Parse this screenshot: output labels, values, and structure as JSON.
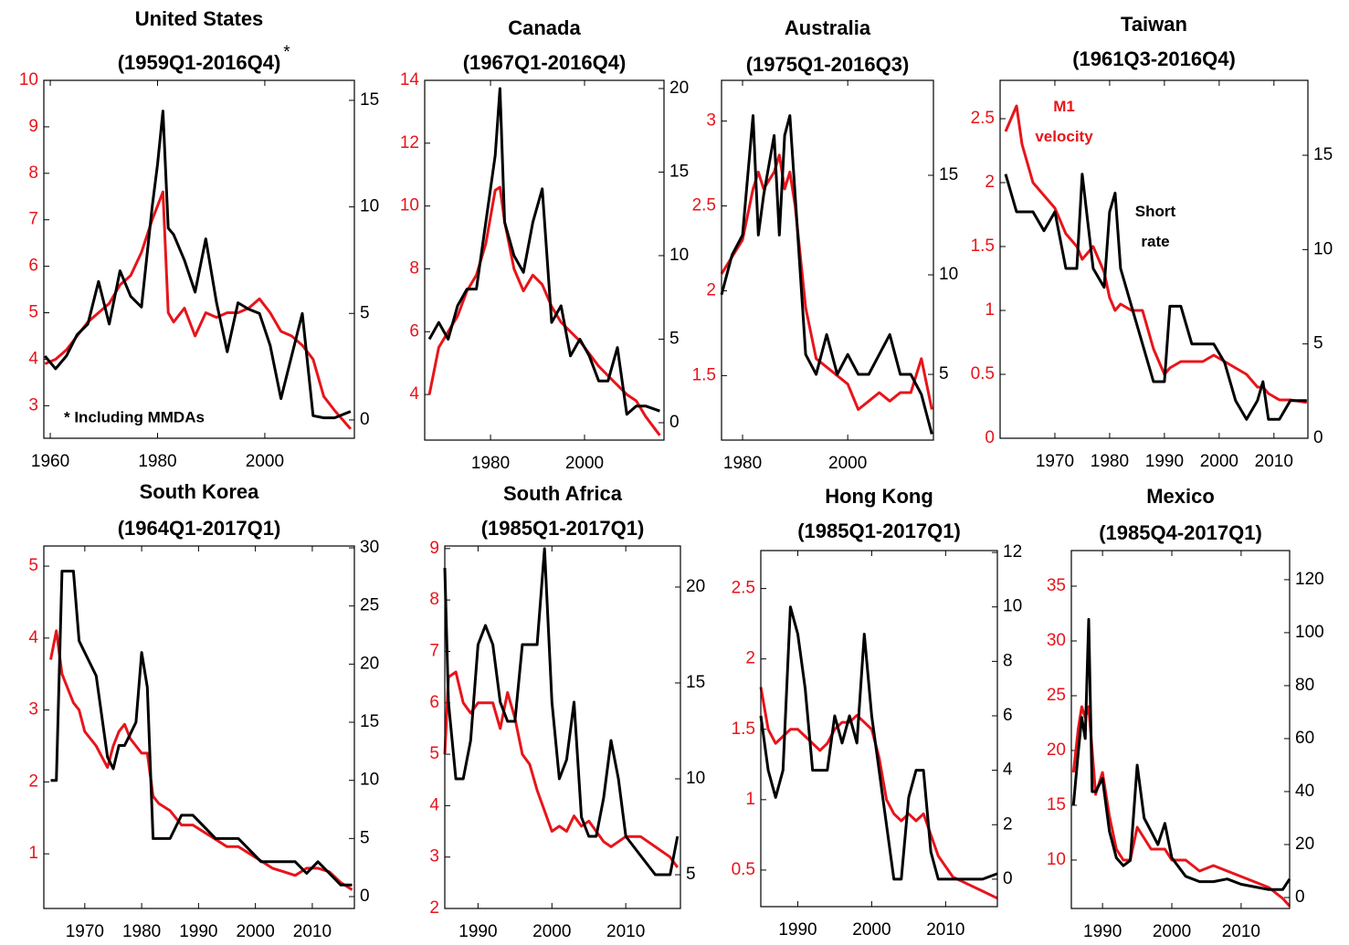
{
  "chart_data": [
    {
      "type": "line",
      "title": "United States",
      "subtitle": "(1959Q1-2016Q4)",
      "annotations": [
        "*",
        "* Including MMDAs"
      ],
      "x": [
        1959,
        1961,
        1963,
        1965,
        1967,
        1969,
        1971,
        1973,
        1975,
        1977,
        1979,
        1980,
        1981,
        1982,
        1983,
        1985,
        1987,
        1989,
        1991,
        1993,
        1995,
        1997,
        1999,
        2001,
        2003,
        2005,
        2007,
        2009,
        2011,
        2013,
        2016
      ],
      "xlim": [
        1958.8,
        2016.7
      ],
      "xticks": [
        1960,
        1980,
        2000
      ],
      "ylim": [
        2.3,
        10
      ],
      "yticks": [
        3,
        4,
        5,
        6,
        7,
        8,
        9,
        10
      ],
      "y2lim": [
        -0.86,
        15.94
      ],
      "y2ticks": [
        0,
        5,
        10,
        15
      ],
      "series": [
        {
          "color": "#e8141b",
          "values": [
            3.9,
            4.0,
            4.2,
            4.5,
            4.8,
            5.0,
            5.2,
            5.6,
            5.8,
            6.3,
            7.0,
            7.3,
            7.6,
            5.0,
            4.8,
            5.1,
            4.5,
            5.0,
            4.9,
            5.0,
            5.0,
            5.1,
            5.3,
            5.0,
            4.6,
            4.5,
            4.3,
            4.0,
            3.2,
            2.9,
            2.5
          ]
        },
        {
          "color": "#000000",
          "axis": "y2",
          "values": [
            3.0,
            2.4,
            3.0,
            4.0,
            4.5,
            6.5,
            4.5,
            7.0,
            5.8,
            5.3,
            10.0,
            12.0,
            14.5,
            9.0,
            8.7,
            7.5,
            6.0,
            8.5,
            5.5,
            3.2,
            5.5,
            5.2,
            5.0,
            3.5,
            1.0,
            3.0,
            5.0,
            0.2,
            0.1,
            0.1,
            0.4
          ]
        }
      ]
    },
    {
      "type": "line",
      "title": "Canada",
      "subtitle": "(1967Q1-2016Q4)",
      "x": [
        1967,
        1969,
        1971,
        1973,
        1975,
        1977,
        1979,
        1981,
        1982,
        1983,
        1985,
        1987,
        1989,
        1991,
        1993,
        1995,
        1997,
        1999,
        2001,
        2003,
        2005,
        2007,
        2009,
        2011,
        2013,
        2016
      ],
      "xlim": [
        1966,
        2016.9
      ],
      "xticks": [
        1980,
        2000
      ],
      "ylim": [
        2.55,
        14
      ],
      "yticks": [
        4,
        6,
        8,
        10,
        12,
        14
      ],
      "y2lim": [
        -1.04,
        20.49
      ],
      "y2ticks": [
        0,
        5,
        10,
        15,
        20
      ],
      "series": [
        {
          "color": "#e8141b",
          "values": [
            4.0,
            5.5,
            6.0,
            6.5,
            7.3,
            7.8,
            8.8,
            10.5,
            10.6,
            9.5,
            8.0,
            7.3,
            7.8,
            7.5,
            6.8,
            6.3,
            6.0,
            5.7,
            5.3,
            4.9,
            4.6,
            4.3,
            4.0,
            3.8,
            3.3,
            2.7
          ]
        },
        {
          "color": "#000000",
          "axis": "y2",
          "values": [
            5,
            6,
            5,
            7,
            8,
            8,
            12,
            16,
            20,
            12,
            10,
            9,
            12,
            14,
            6,
            7,
            4,
            5,
            4,
            2.5,
            2.5,
            4.5,
            0.5,
            1,
            1,
            0.7
          ]
        }
      ]
    },
    {
      "type": "line",
      "title": "Australia",
      "subtitle": "(1975Q1-2016Q3)",
      "x": [
        1976,
        1978,
        1980,
        1982,
        1983,
        1984,
        1986,
        1987,
        1988,
        1989,
        1990,
        1992,
        1994,
        1996,
        1998,
        2000,
        2002,
        2004,
        2006,
        2008,
        2010,
        2012,
        2014,
        2016
      ],
      "xlim": [
        1976,
        2016.3
      ],
      "xticks": [
        1980,
        2000
      ],
      "ylim": [
        1.12,
        3.24
      ],
      "yticks": [
        1.5,
        2,
        2.5,
        3
      ],
      "y2lim": [
        1.7,
        19.77
      ],
      "y2ticks": [
        5,
        10,
        15
      ],
      "series": [
        {
          "color": "#e8141b",
          "values": [
            2.1,
            2.2,
            2.3,
            2.6,
            2.7,
            2.6,
            2.7,
            2.8,
            2.6,
            2.7,
            2.5,
            1.9,
            1.6,
            1.55,
            1.5,
            1.45,
            1.3,
            1.35,
            1.4,
            1.35,
            1.4,
            1.4,
            1.6,
            1.3
          ]
        },
        {
          "color": "#000000",
          "axis": "y2",
          "values": [
            9,
            11,
            12,
            18,
            12,
            14,
            17,
            12,
            17,
            18,
            14,
            6,
            5,
            7,
            5,
            6,
            5,
            5,
            6,
            7,
            5,
            5,
            4,
            2
          ]
        }
      ]
    },
    {
      "type": "line",
      "title": "Taiwan",
      "subtitle": "(1961Q3-2016Q4)",
      "x": [
        1961,
        1963,
        1964,
        1966,
        1968,
        1970,
        1972,
        1974,
        1975,
        1977,
        1979,
        1980,
        1981,
        1982,
        1984,
        1986,
        1988,
        1990,
        1991,
        1993,
        1995,
        1997,
        1999,
        2001,
        2003,
        2005,
        2007,
        2008,
        2009,
        2011,
        2013,
        2016
      ],
      "xlim": [
        1960,
        2016.2
      ],
      "xticks": [
        1970,
        1980,
        1990,
        2000,
        2010
      ],
      "ylim": [
        0,
        2.8
      ],
      "yticks": [
        0,
        0.5,
        1,
        1.5,
        2,
        2.5
      ],
      "y2lim": [
        0,
        18.97
      ],
      "y2ticks": [
        0,
        5,
        10,
        15
      ],
      "series": [
        {
          "name": "M1 velocity",
          "color": "#e8141b",
          "values": [
            2.4,
            2.6,
            2.3,
            2.0,
            1.9,
            1.8,
            1.6,
            1.5,
            1.4,
            1.5,
            1.3,
            1.1,
            1.0,
            1.05,
            1.0,
            1.0,
            0.7,
            0.5,
            0.55,
            0.6,
            0.6,
            0.6,
            0.65,
            0.6,
            0.55,
            0.5,
            0.4,
            0.4,
            0.35,
            0.3,
            0.3,
            0.28
          ]
        },
        {
          "name": "Short rate",
          "color": "#000000",
          "axis": "y2",
          "values": [
            14,
            12,
            12,
            12,
            11,
            12,
            9,
            9,
            14,
            9,
            8,
            12,
            13,
            9,
            7,
            5,
            3,
            3,
            7,
            7,
            5,
            5,
            5,
            4,
            2,
            1,
            2,
            3,
            1,
            1,
            2,
            2
          ]
        }
      ]
    },
    {
      "type": "line",
      "title": "South Korea",
      "subtitle": "(1964Q1-2017Q1)",
      "x": [
        1964,
        1965,
        1966,
        1968,
        1969,
        1970,
        1972,
        1974,
        1975,
        1976,
        1977,
        1978,
        1979,
        1980,
        1981,
        1982,
        1983,
        1985,
        1987,
        1989,
        1991,
        1993,
        1995,
        1997,
        1999,
        2001,
        2003,
        2005,
        2007,
        2009,
        2011,
        2013,
        2015,
        2017
      ],
      "xlim": [
        1962.8,
        2017.4
      ],
      "xticks": [
        1970,
        1980,
        1990,
        2000,
        2010
      ],
      "ylim": [
        0.24,
        5.28
      ],
      "yticks": [
        1,
        2,
        3,
        4,
        5
      ],
      "y2lim": [
        -1.02,
        30.16
      ],
      "y2ticks": [
        0,
        5,
        10,
        15,
        20,
        25,
        30
      ],
      "series": [
        {
          "color": "#e8141b",
          "values": [
            3.7,
            4.1,
            3.5,
            3.1,
            3.0,
            2.7,
            2.5,
            2.2,
            2.5,
            2.7,
            2.8,
            2.6,
            2.5,
            2.4,
            2.4,
            1.8,
            1.7,
            1.6,
            1.4,
            1.4,
            1.3,
            1.2,
            1.1,
            1.1,
            1.0,
            0.9,
            0.8,
            0.75,
            0.7,
            0.8,
            0.8,
            0.75,
            0.6,
            0.5
          ]
        },
        {
          "color": "#000000",
          "axis": "y2",
          "values": [
            10,
            10,
            28,
            28,
            22,
            21,
            19,
            12,
            11,
            13,
            13,
            14,
            15,
            21,
            18,
            5,
            5,
            5,
            7,
            7,
            6,
            5,
            5,
            5,
            4,
            3,
            3,
            3,
            3,
            2,
            3,
            2,
            1,
            1
          ]
        }
      ]
    },
    {
      "type": "line",
      "title": "South Africa",
      "subtitle": "(1985Q1-2017Q1)",
      "x": [
        1985.5,
        1986,
        1987,
        1988,
        1989,
        1990,
        1991,
        1992,
        1993,
        1994,
        1995,
        1996,
        1997,
        1998,
        1999,
        2000,
        2001,
        2002,
        2003,
        2004,
        2005,
        2006,
        2007,
        2008,
        2009,
        2010,
        2012,
        2014,
        2016,
        2017
      ],
      "xlim": [
        1985.5,
        2017.4
      ],
      "xticks": [
        1990,
        2000,
        2010
      ],
      "ylim": [
        2,
        9.05
      ],
      "yticks": [
        2,
        3,
        4,
        5,
        6,
        7,
        8,
        9
      ],
      "y2lim": [
        3.24,
        22.14
      ],
      "y2ticks": [
        5,
        10,
        15,
        20
      ],
      "series": [
        {
          "color": "#e8141b",
          "values": [
            5,
            6.5,
            6.6,
            6.0,
            5.8,
            6.0,
            6.0,
            6.0,
            5.5,
            6.2,
            5.7,
            5.0,
            4.8,
            4.3,
            3.9,
            3.5,
            3.6,
            3.5,
            3.8,
            3.6,
            3.7,
            3.5,
            3.3,
            3.2,
            3.3,
            3.4,
            3.4,
            3.2,
            3.0,
            2.8
          ]
        },
        {
          "color": "#000000",
          "axis": "y2",
          "values": [
            21,
            14,
            10,
            10,
            12,
            17,
            18,
            17,
            14,
            13,
            13,
            17,
            17,
            17,
            22,
            14,
            10,
            11,
            14,
            8,
            7,
            7,
            9,
            12,
            10,
            7,
            6,
            5,
            5,
            7
          ]
        }
      ]
    },
    {
      "type": "line",
      "title": "Hong Kong",
      "subtitle": "(1985Q1-2017Q1)",
      "x": [
        1985,
        1986,
        1987,
        1988,
        1989,
        1990,
        1991,
        1992,
        1993,
        1994,
        1995,
        1996,
        1997,
        1998,
        1999,
        2000,
        2001,
        2002,
        2003,
        2004,
        2005,
        2006,
        2007,
        2008,
        2009,
        2011,
        2013,
        2015,
        2017
      ],
      "xlim": [
        1985,
        2017
      ],
      "xticks": [
        1990,
        2000,
        2010
      ],
      "ylim": [
        0.24,
        2.77
      ],
      "yticks": [
        0.5,
        1,
        1.5,
        2,
        2.5
      ],
      "y2lim": [
        -1.01,
        12.07
      ],
      "y2ticks": [
        0,
        2,
        4,
        6,
        8,
        10,
        12
      ],
      "series": [
        {
          "color": "#e8141b",
          "values": [
            1.8,
            1.5,
            1.4,
            1.45,
            1.5,
            1.5,
            1.45,
            1.4,
            1.35,
            1.4,
            1.5,
            1.55,
            1.55,
            1.6,
            1.55,
            1.5,
            1.3,
            1.0,
            0.9,
            0.85,
            0.9,
            0.85,
            0.9,
            0.75,
            0.6,
            0.45,
            0.4,
            0.35,
            0.3
          ]
        },
        {
          "color": "#000000",
          "axis": "y2",
          "values": [
            6,
            4,
            3,
            4,
            10,
            9,
            7,
            4,
            4,
            4,
            6,
            5,
            6,
            5,
            9,
            6,
            4,
            2,
            0,
            0,
            3,
            4,
            4,
            1,
            0,
            0,
            0,
            0,
            0.2
          ]
        }
      ]
    },
    {
      "type": "line",
      "title": "Mexico",
      "subtitle": "(1985Q4-2017Q1)",
      "x": [
        1985.8,
        1986.5,
        1987,
        1987.5,
        1988,
        1988.5,
        1989,
        1990,
        1991,
        1992,
        1993,
        1994,
        1995,
        1996,
        1997,
        1998,
        1999,
        2000,
        2002,
        2004,
        2006,
        2008,
        2010,
        2012,
        2014,
        2016,
        2017
      ],
      "xlim": [
        1985.5,
        2017
      ],
      "xticks": [
        1990,
        2000,
        2010
      ],
      "ylim": [
        5.58,
        38.25
      ],
      "yticks": [
        10,
        15,
        20,
        25,
        30,
        35
      ],
      "y2lim": [
        -4.14,
        131
      ],
      "y2ticks": [
        0,
        20,
        40,
        60,
        80,
        100,
        120
      ],
      "series": [
        {
          "color": "#e8141b",
          "values": [
            18,
            22,
            24,
            23,
            24,
            20,
            16,
            18,
            14,
            11,
            10,
            10,
            13,
            12,
            11,
            11,
            11,
            10,
            10,
            9,
            9.5,
            9,
            8.5,
            8,
            7.5,
            6.5,
            5.8
          ]
        },
        {
          "color": "#000000",
          "axis": "y2",
          "values": [
            35,
            55,
            68,
            60,
            105,
            40,
            40,
            45,
            25,
            15,
            12,
            14,
            50,
            30,
            25,
            20,
            28,
            15,
            8,
            6,
            6,
            7,
            5,
            4,
            3,
            3,
            7
          ]
        }
      ]
    }
  ]
}
